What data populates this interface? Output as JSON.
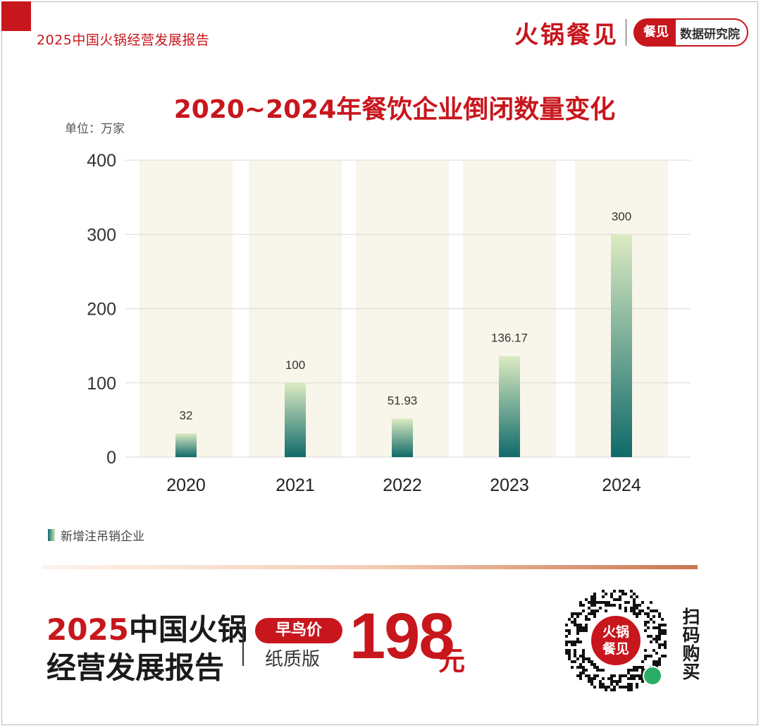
{
  "header": {
    "report_title": "2025中国火锅经营发展报告",
    "brand_name": "火锅餐见",
    "brand_badge": "餐见",
    "brand_sub": "数据研究院"
  },
  "chart_data": {
    "type": "bar",
    "title": "2020~2024年餐饮企业倒闭数量变化",
    "unit": "单位：万家",
    "categories": [
      "2020",
      "2021",
      "2022",
      "2023",
      "2024"
    ],
    "series": [
      {
        "name": "新增注吊销企业",
        "values": [
          32,
          100,
          51.93,
          136.17,
          300
        ],
        "labels": [
          "32",
          "100",
          "51.93",
          "136.17",
          "300"
        ]
      }
    ],
    "y_ticks": [
      "400",
      "300",
      "200",
      "100",
      "0"
    ],
    "ylim": [
      0,
      400
    ],
    "grid": true,
    "legend_position": "bottom-left",
    "colors": {
      "bar_top": "#dcebc2",
      "bar_bottom": "#0f6a6a",
      "band": "#f8f5ea",
      "grid": "#d9d9d9"
    }
  },
  "promo": {
    "title_highlight": "2025",
    "title_rest": "中国火锅",
    "title_line2": "经营发展报告",
    "badge": "早鸟价",
    "edition": "纸质版",
    "price": "198",
    "price_unit": "元",
    "qr_center_line1": "火锅",
    "qr_center_line2": "餐见",
    "scan_text": "扫码购买"
  }
}
